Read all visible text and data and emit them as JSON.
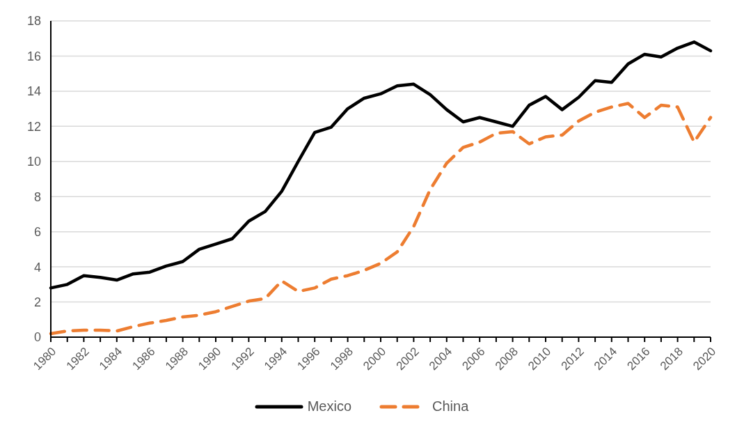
{
  "chart_data": {
    "type": "line",
    "categories": [
      "1980",
      null,
      "1982",
      null,
      "1984",
      null,
      "1986",
      null,
      "1988",
      null,
      "1990",
      null,
      "1992",
      null,
      "1994",
      null,
      "1996",
      null,
      "1998",
      null,
      "2000",
      null,
      "2002",
      null,
      "2004",
      null,
      "2006",
      null,
      "2008",
      null,
      "2010",
      null,
      "2012",
      null,
      "2014",
      null,
      "2016",
      null,
      "2018",
      null,
      "2020"
    ],
    "series": [
      {
        "name": "Mexico",
        "color": "#000000",
        "line_style": "solid",
        "values": [
          2.8,
          3.0,
          3.5,
          3.4,
          3.25,
          3.6,
          3.7,
          4.05,
          4.3,
          5.0,
          5.3,
          5.6,
          6.6,
          7.15,
          8.3,
          10.0,
          11.65,
          11.95,
          13.0,
          13.6,
          13.85,
          14.3,
          14.4,
          13.8,
          12.95,
          12.25,
          12.5,
          12.25,
          12.0,
          13.2,
          13.7,
          12.95,
          13.65,
          14.6,
          14.5,
          15.55,
          16.1,
          15.95,
          16.45,
          16.8,
          16.3
        ]
      },
      {
        "name": "China",
        "color": "#ed7d31",
        "line_style": "dashed",
        "values": [
          0.2,
          0.35,
          0.4,
          0.4,
          0.35,
          0.6,
          0.8,
          0.95,
          1.15,
          1.25,
          1.45,
          1.75,
          2.05,
          2.2,
          3.2,
          2.6,
          2.8,
          3.3,
          3.5,
          3.8,
          4.2,
          4.85,
          6.3,
          8.4,
          9.9,
          10.8,
          11.1,
          11.6,
          11.7,
          11.0,
          11.4,
          11.5,
          12.3,
          12.8,
          13.1,
          13.3,
          12.5,
          13.2,
          13.1,
          11.1,
          12.5
        ]
      }
    ],
    "ylim": [
      0,
      18
    ],
    "yticks": [
      0,
      2,
      4,
      6,
      8,
      10,
      12,
      14,
      16,
      18
    ],
    "grid": "y",
    "legend": "bottom",
    "marker": "none"
  }
}
